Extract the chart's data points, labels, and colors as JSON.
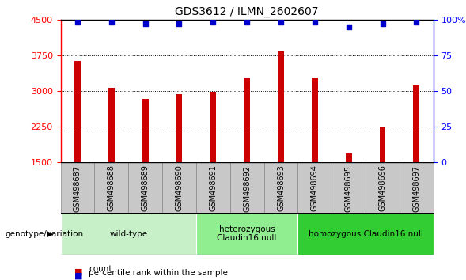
{
  "title": "GDS3612 / ILMN_2602607",
  "samples": [
    "GSM498687",
    "GSM498688",
    "GSM498689",
    "GSM498690",
    "GSM498691",
    "GSM498692",
    "GSM498693",
    "GSM498694",
    "GSM498695",
    "GSM498696",
    "GSM498697"
  ],
  "counts": [
    3640,
    3070,
    2840,
    2940,
    2990,
    3270,
    3830,
    3280,
    1690,
    2260,
    3110
  ],
  "percentile_ranks": [
    98,
    98,
    97,
    97,
    98,
    98,
    98,
    98,
    95,
    97,
    98
  ],
  "ylim_left": [
    1500,
    4500
  ],
  "ylim_right": [
    0,
    100
  ],
  "yticks_left": [
    1500,
    2250,
    3000,
    3750,
    4500
  ],
  "yticks_right": [
    0,
    25,
    50,
    75,
    100
  ],
  "groups": [
    {
      "label": "wild-type",
      "indices": [
        0,
        1,
        2,
        3
      ],
      "color": "#c8f0c8"
    },
    {
      "label": "heterozygous\nClaudin16 null",
      "indices": [
        4,
        5,
        6
      ],
      "color": "#90ee90"
    },
    {
      "label": "homozygous Claudin16 null",
      "indices": [
        7,
        8,
        9,
        10
      ],
      "color": "#32cd32"
    }
  ],
  "bar_color": "#cc0000",
  "dot_color": "#0000cc",
  "sample_box_color": "#c8c8c8",
  "sample_box_edge": "#888888",
  "genotype_label": "genotype/variation",
  "legend_count_label": "count",
  "legend_pct_label": "percentile rank within the sample",
  "bar_width": 0.18
}
